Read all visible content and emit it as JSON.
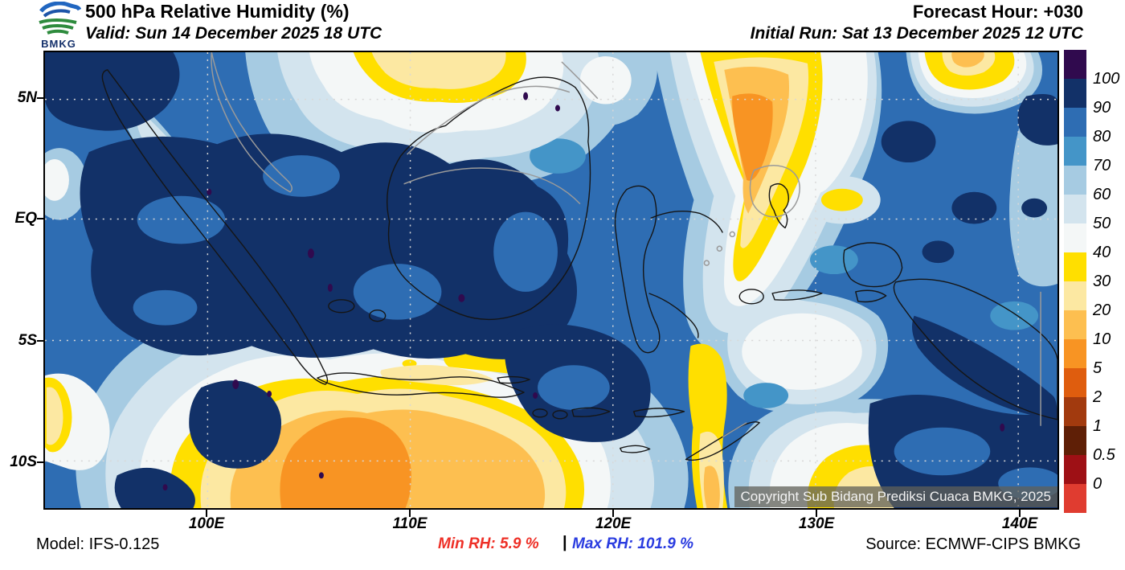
{
  "header": {
    "logo_text": "BMKG",
    "title": "500 hPa Relative Humidity (%)",
    "valid": "Valid: Sun 14 December 2025 18 UTC",
    "forecast_hour": "Forecast Hour: +030",
    "initial_run": "Initial Run: Sat 13 December 2025 12 UTC"
  },
  "map": {
    "y_ticks": [
      "5N",
      "EQ",
      "5S",
      "10S"
    ],
    "x_ticks": [
      "100E",
      "110E",
      "120E",
      "130E",
      "140E"
    ],
    "watermark": "Copyright Sub Bidang Prediksi Cuaca BMKG, 2025"
  },
  "colorbar": {
    "labels": [
      "100",
      "90",
      "80",
      "70",
      "60",
      "50",
      "40",
      "30",
      "20",
      "10",
      "5",
      "2",
      "1",
      "0.5",
      "0"
    ],
    "colors": [
      "#300a4e",
      "#123168",
      "#2e6db3",
      "#4495c8",
      "#a6cbe2",
      "#d3e4ee",
      "#f4f7f7",
      "#ffdf00",
      "#fce8a2",
      "#fdbf50",
      "#f89423",
      "#df5d0e",
      "#a23a0e",
      "#5f1f06",
      "#9e1015",
      "#e03c30"
    ]
  },
  "footer": {
    "model": "Model: IFS-0.125",
    "min_rh": "Min RH:  5.9 %",
    "separator": "|",
    "max_rh": "Max RH: 101.9 %",
    "source": "Source: ECMWF-CIPS BMKG",
    "min_color": "#ee2f26",
    "max_color": "#2a3ce0"
  },
  "chart_data": {
    "type": "filled-contour-map",
    "variable": "500 hPa Relative Humidity (%)",
    "model": "IFS-0.125",
    "source": "ECMWF-CIPS BMKG",
    "forecast_hour": "+030",
    "valid_time": "Sun 14 December 2025 18 UTC",
    "initial_run": "Sat 13 December 2025 12 UTC",
    "lon_ticks": [
      "100E",
      "110E",
      "120E",
      "130E",
      "140E"
    ],
    "lat_ticks": [
      "5N",
      "EQ",
      "5S",
      "10S"
    ],
    "legend_levels": [
      100,
      90,
      80,
      70,
      60,
      50,
      40,
      30,
      20,
      10,
      5,
      2,
      1,
      0.5,
      0
    ],
    "min_rh_percent": 5.9,
    "max_rh_percent": 101.9
  }
}
